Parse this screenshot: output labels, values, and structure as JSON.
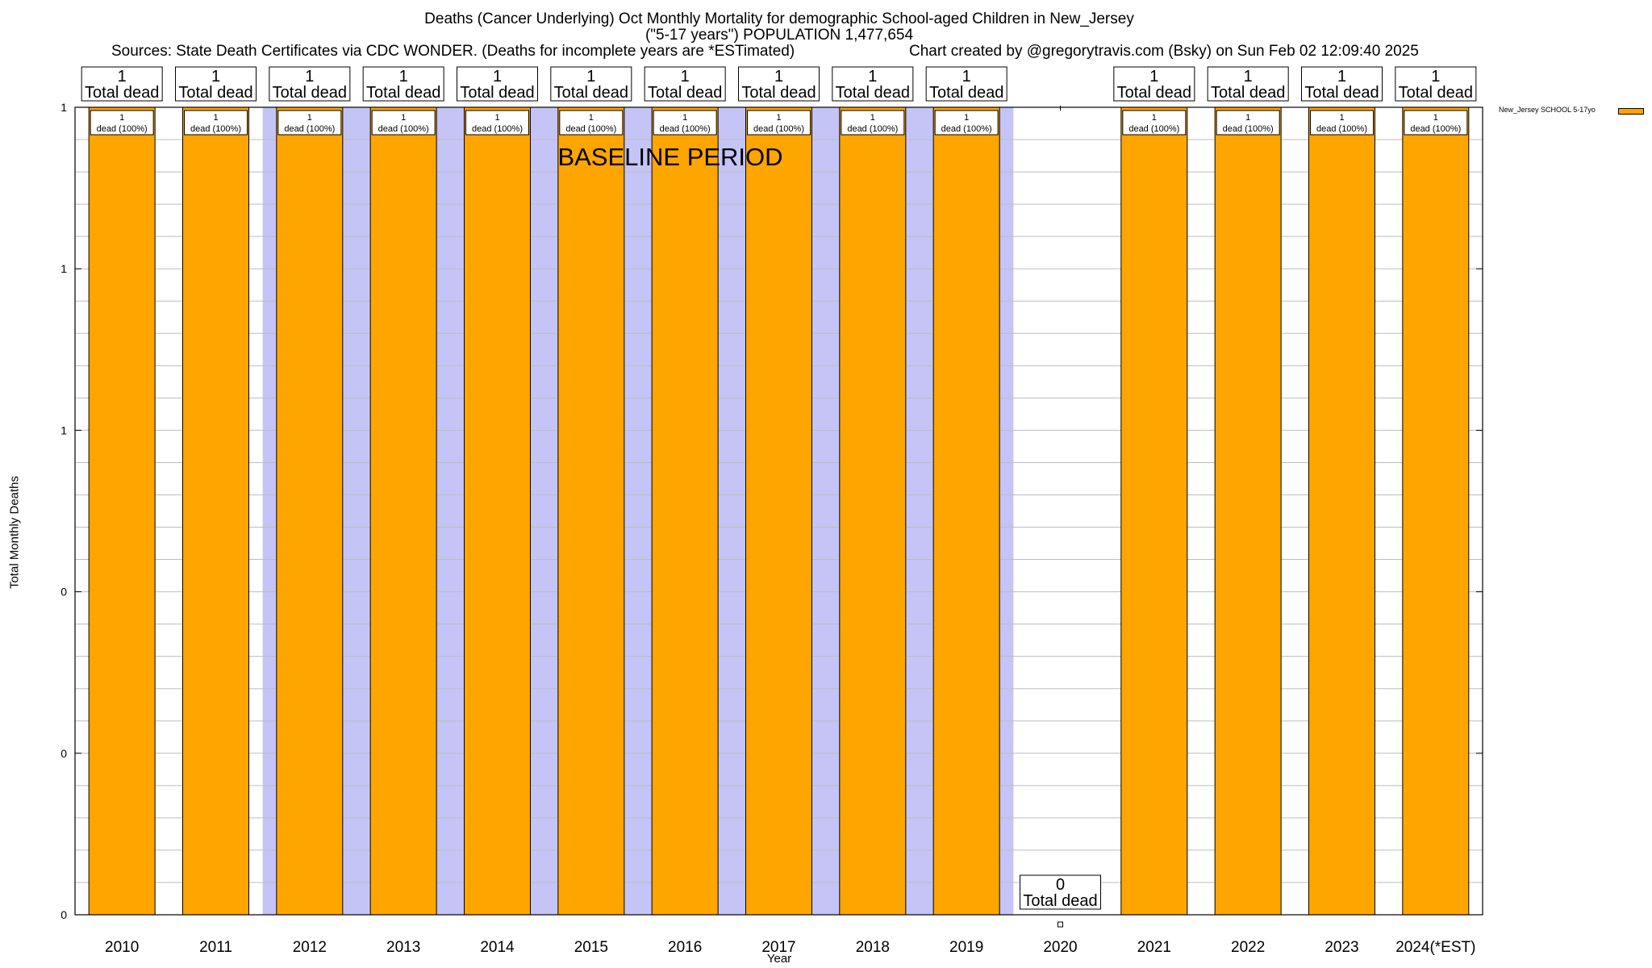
{
  "chart_data": {
    "type": "bar",
    "title": "Deaths (Cancer Underlying) Oct Monthly Mortality for demographic School-aged Children in New_Jersey",
    "subtitle": "(\"5-17 years\") POPULATION 1,477,654",
    "sources": "Sources: State Death Certificates via CDC WONDER. (Deaths for incomplete years are *ESTimated)",
    "credit": "Chart created by @gregorytravis.com (Bsky) on Sun Feb 02 12:09:40 2025",
    "xlabel": "Year",
    "ylabel": "Total Monthly Deaths",
    "annotation": "BASELINE PERIOD",
    "categories": [
      "2010",
      "2011",
      "2012",
      "2013",
      "2014",
      "2015",
      "2016",
      "2017",
      "2018",
      "2019",
      "2020",
      "2021",
      "2022",
      "2023",
      "2024(*EST)"
    ],
    "series": [
      {
        "name": "New_Jersey SCHOOL 5-17yo",
        "color": "#FFA500",
        "values": [
          1,
          1,
          1,
          1,
          1,
          1,
          1,
          1,
          1,
          1,
          0,
          1,
          1,
          1,
          1
        ]
      }
    ],
    "total_labels": [
      "1",
      "1",
      "1",
      "1",
      "1",
      "1",
      "1",
      "1",
      "1",
      "1",
      "0",
      "1",
      "1",
      "1",
      "1"
    ],
    "total_label_suffix": "Total dead",
    "segment_labels": [
      "1",
      "1",
      "1",
      "1",
      "1",
      "1",
      "1",
      "1",
      "1",
      "1",
      "",
      "1",
      "1",
      "1",
      "1"
    ],
    "segment_label_suffix": "dead (100%)",
    "ylim": [
      0,
      1
    ],
    "yticks": [
      0,
      0.2,
      0.4,
      0.6,
      0.8,
      1
    ],
    "ytick_labels": [
      "0",
      "0",
      "0",
      "1",
      "1",
      "1"
    ],
    "baseline_years": [
      "2012",
      "2013",
      "2014",
      "2015",
      "2016",
      "2017",
      "2018",
      "2019"
    ],
    "baseline_color": "#C4C4F7",
    "grid": true,
    "legend_position": "top-right"
  }
}
